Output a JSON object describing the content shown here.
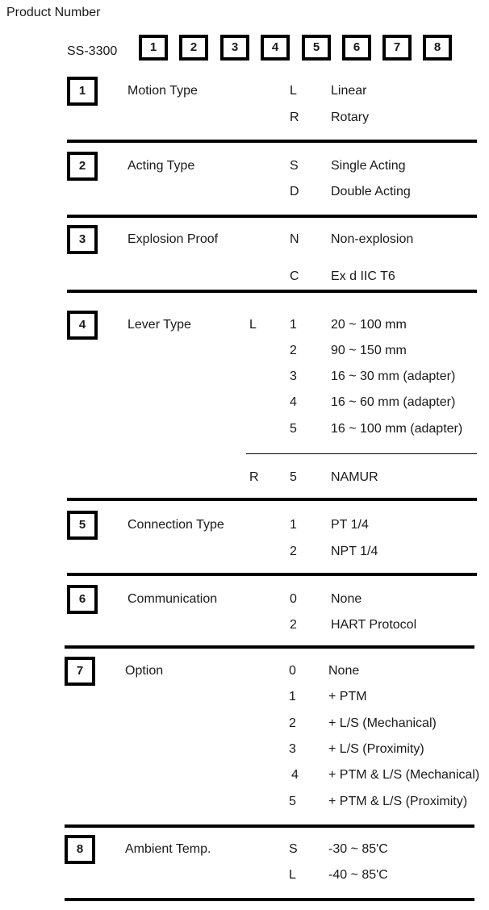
{
  "title": "Product Number",
  "model": "SS-3300",
  "header_boxes": [
    "1",
    "2",
    "3",
    "4",
    "5",
    "6",
    "7",
    "8"
  ],
  "sections": [
    {
      "num": "1",
      "label": "Motion Type",
      "rows": [
        {
          "code": "L",
          "desc": "Linear"
        },
        {
          "code": "R",
          "desc": "Rotary"
        }
      ]
    },
    {
      "num": "2",
      "label": "Acting Type",
      "rows": [
        {
          "code": "S",
          "desc": "Single Acting"
        },
        {
          "code": "D",
          "desc": "Double Acting"
        }
      ]
    },
    {
      "num": "3",
      "label": "Explosion Proof",
      "rows": [
        {
          "code": "N",
          "desc": "Non-explosion"
        },
        {
          "code": "C",
          "desc": "Ex d IIC T6"
        }
      ]
    },
    {
      "num": "4",
      "label": "Lever Type",
      "rows": [
        {
          "prefix": "L",
          "code": "1",
          "desc": "20 ~ 100 mm"
        },
        {
          "code": "2",
          "desc": "90 ~ 150 mm"
        },
        {
          "code": "3",
          "desc": "16 ~ 30 mm (adapter)"
        },
        {
          "code": "4",
          "desc": "16 ~ 60 mm (adapter)"
        },
        {
          "code": "5",
          "desc": "16 ~ 100 mm (adapter)"
        },
        {
          "prefix": "R",
          "code": "5",
          "desc": "NAMUR"
        }
      ]
    },
    {
      "num": "5",
      "label": "Connection Type",
      "rows": [
        {
          "code": "1",
          "desc": "PT 1/4"
        },
        {
          "code": "2",
          "desc": "NPT 1/4"
        }
      ]
    },
    {
      "num": "6",
      "label": "Communication",
      "rows": [
        {
          "code": "0",
          "desc": "None"
        },
        {
          "code": "2",
          "desc": "HART Protocol"
        }
      ]
    },
    {
      "num": "7",
      "label": "Option",
      "rows": [
        {
          "code": "0",
          "desc": "None"
        },
        {
          "code": "1",
          "desc": "+ PTM"
        },
        {
          "code": "2",
          "desc": "+ L/S (Mechanical)"
        },
        {
          "code": "3",
          "desc": "+ L/S (Proximity)"
        },
        {
          "code": "4",
          "desc": "+ PTM & L/S (Mechanical)"
        },
        {
          "code": "5",
          "desc": "+ PTM & L/S (Proximity)"
        }
      ]
    },
    {
      "num": "8",
      "label": "Ambient Temp.",
      "rows": [
        {
          "code": "S",
          "desc": "-30 ~ 85'C"
        },
        {
          "code": "L",
          "desc": "-40 ~ 85'C"
        }
      ]
    }
  ]
}
